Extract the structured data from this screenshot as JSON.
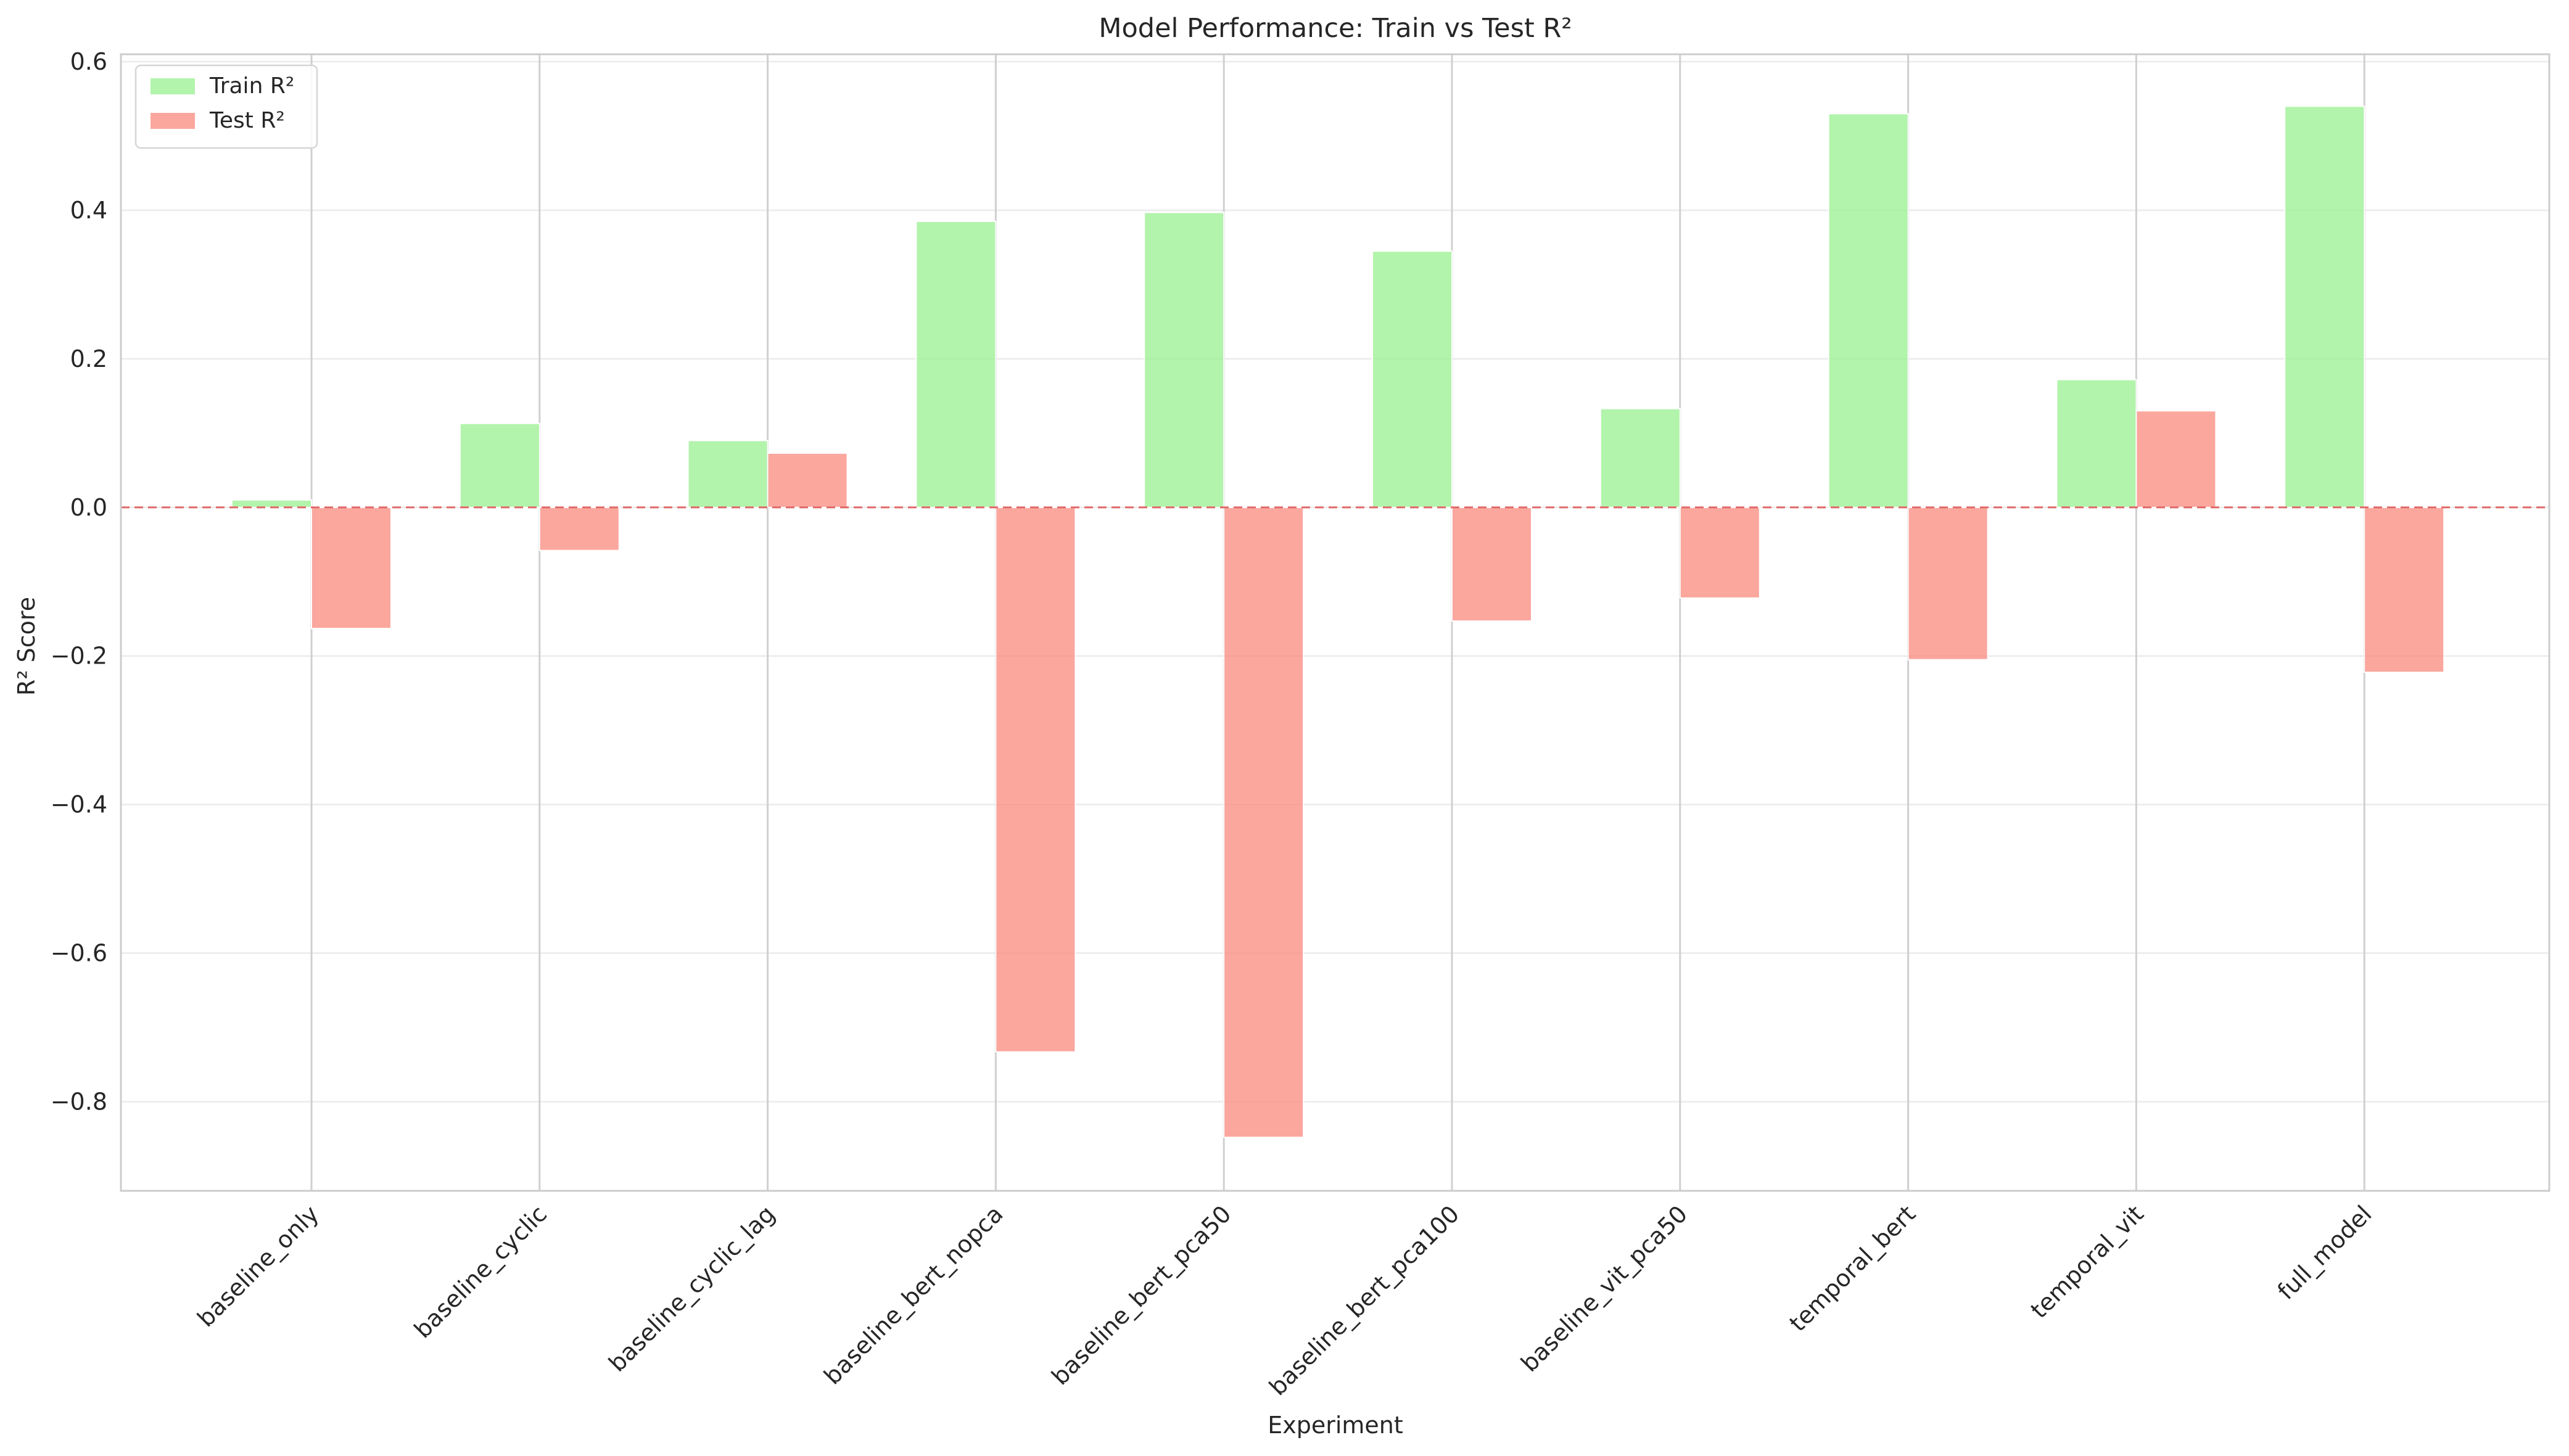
{
  "chart_data": {
    "type": "bar",
    "title": "Model Performance: Train vs Test R²",
    "xlabel": "Experiment",
    "ylabel": "R² Score",
    "categories": [
      "baseline_only",
      "baseline_cyclic",
      "baseline_cyclic_lag",
      "baseline_bert_nopca",
      "baseline_bert_pca50",
      "baseline_bert_pca100",
      "baseline_vit_pca50",
      "temporal_bert",
      "temporal_vit",
      "full_model"
    ],
    "series": [
      {
        "name": "Train R²",
        "color": "#98f08f",
        "values": [
          0.01,
          0.113,
          0.09,
          0.385,
          0.397,
          0.345,
          0.133,
          0.53,
          0.172,
          0.54
        ]
      },
      {
        "name": "Test R²",
        "color": "#fa8a7d",
        "values": [
          -0.163,
          -0.058,
          0.073,
          -0.733,
          -0.848,
          -0.153,
          -0.122,
          -0.205,
          0.13,
          -0.222
        ]
      }
    ],
    "ylim": [
      -0.92,
      0.61
    ],
    "yticks": [
      0.6,
      0.4,
      0.2,
      0.0,
      -0.2,
      -0.4,
      -0.6,
      -0.8
    ],
    "ytick_labels": [
      "0.6",
      "0.4",
      "0.2",
      "0.0",
      "−0.2",
      "−0.4",
      "−0.6",
      "−0.8"
    ],
    "reference_line": 0.0,
    "grid": true,
    "legend_position": "upper left"
  }
}
